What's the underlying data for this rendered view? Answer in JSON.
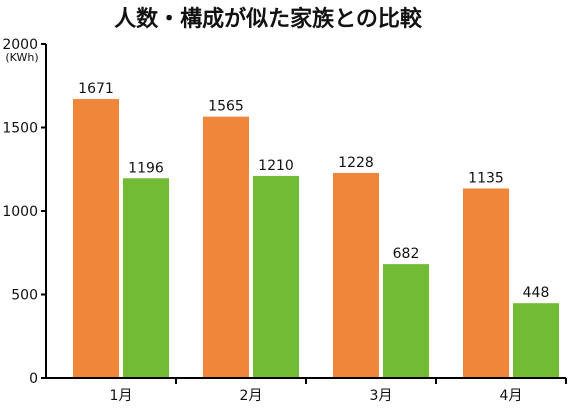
{
  "chart_data": {
    "type": "bar",
    "title": "人数・構成が似た家族との比較",
    "ylabel": "(KWh)",
    "xlabel": "",
    "categories": [
      "1月",
      "2月",
      "3月",
      "4月"
    ],
    "series": [
      {
        "values": [
          1671,
          1565,
          1228,
          1135
        ],
        "color": "#F0863A"
      },
      {
        "values": [
          1196,
          1210,
          682,
          448
        ],
        "color": "#72BB35"
      }
    ],
    "ylim": [
      0,
      2000
    ],
    "yticks": [
      0,
      500,
      1000,
      1500,
      2000
    ],
    "grid": false,
    "legend": "none"
  }
}
